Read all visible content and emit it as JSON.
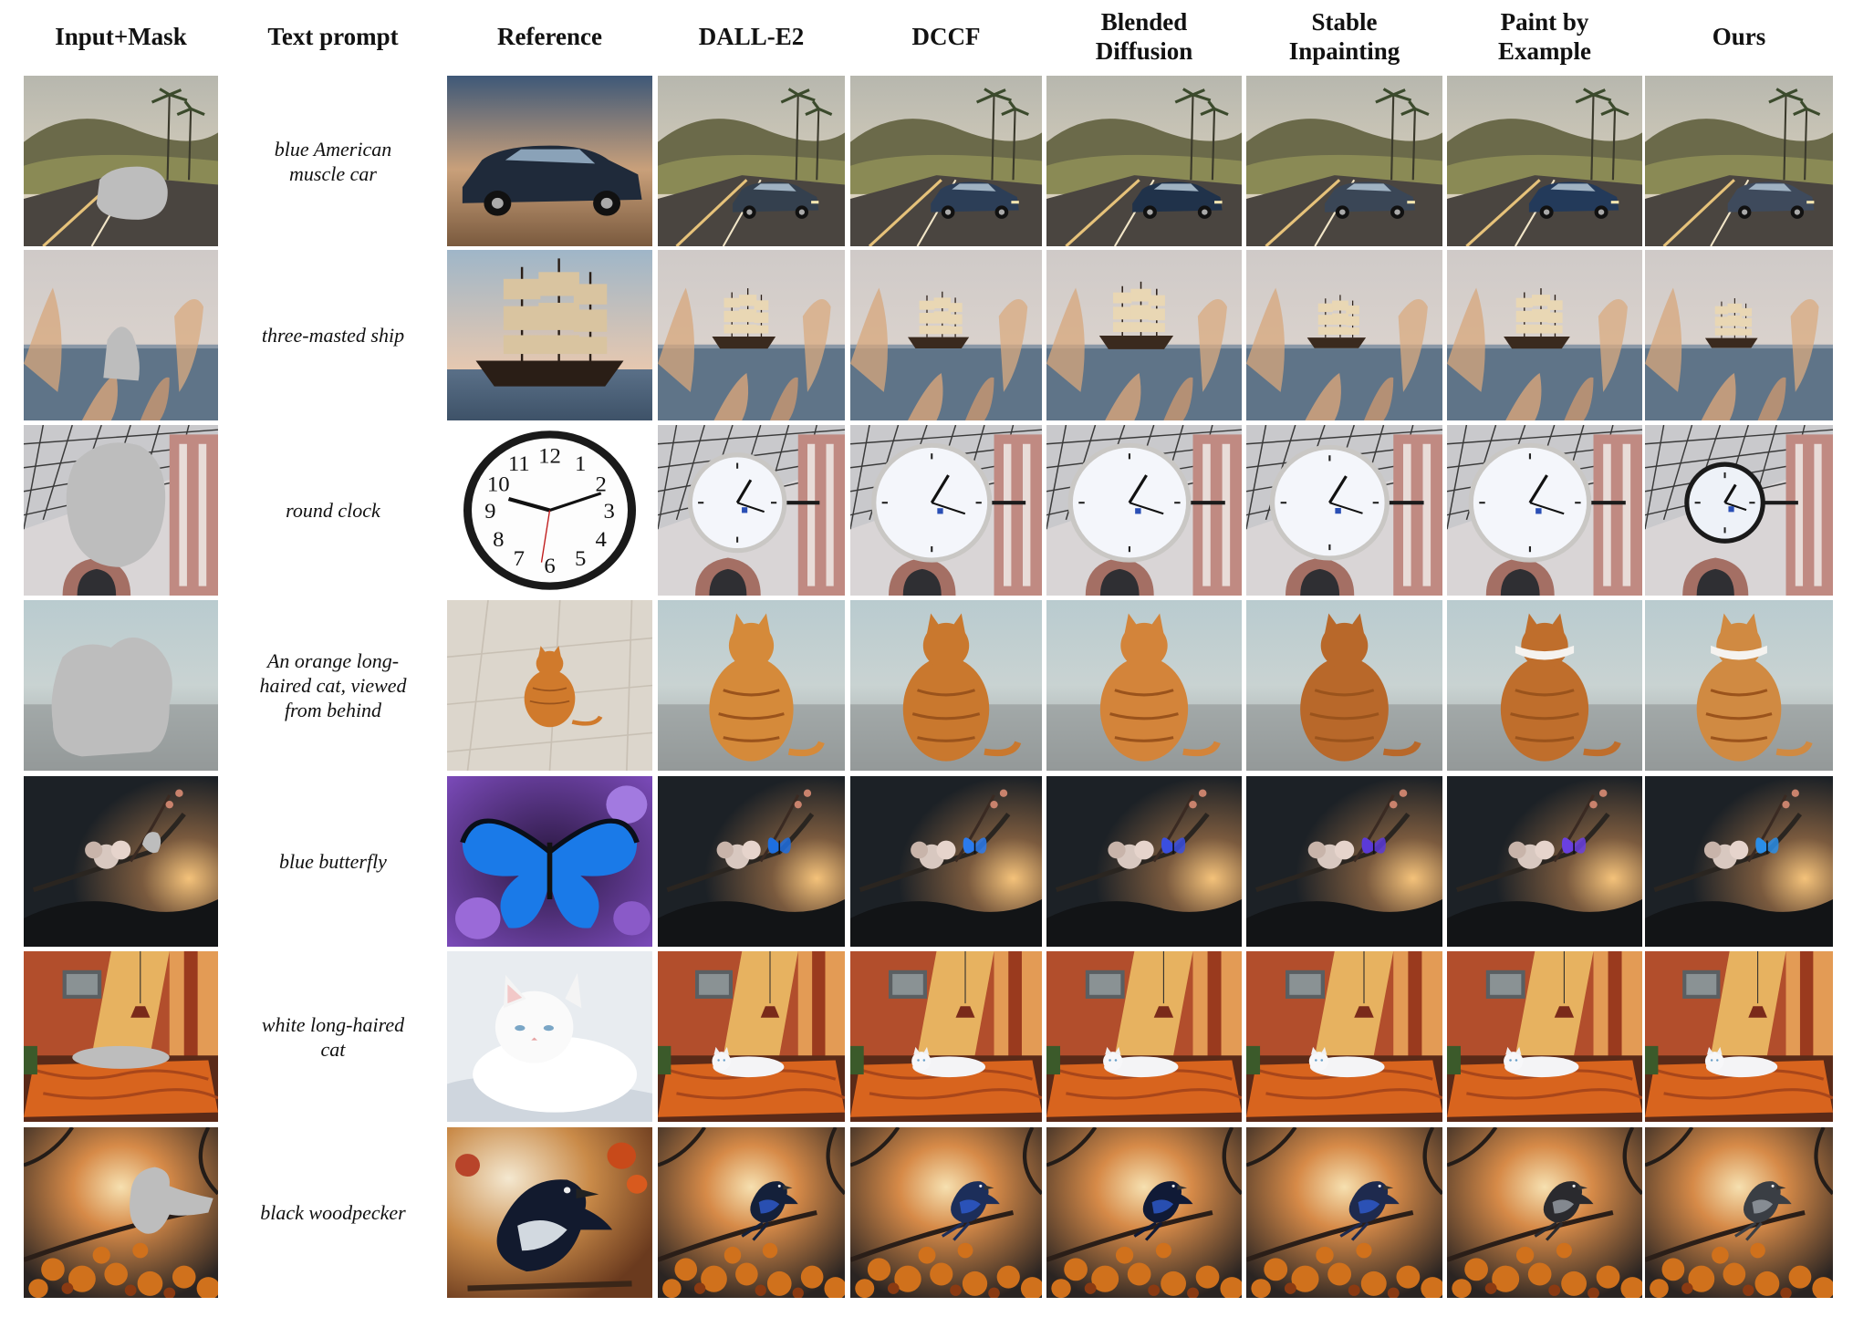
{
  "headers": [
    "Input+Mask",
    "Text prompt",
    "Reference",
    "DALL-E2",
    "DCCF",
    "Blended\nDiffusion",
    "Stable\nInpainting",
    "Paint by\nExample",
    "Ours"
  ],
  "rows": [
    {
      "prompt": "blue American\nmuscle car",
      "scene": "road",
      "subject": "car",
      "ref": "car"
    },
    {
      "prompt": "three-masted ship",
      "scene": "sea",
      "subject": "ship",
      "ref": "ship"
    },
    {
      "prompt": "round clock",
      "scene": "station",
      "subject": "clock",
      "ref": "clock"
    },
    {
      "prompt": "An orange long-\nhaired cat, viewed\nfrom behind",
      "scene": "ground",
      "subject": "cat",
      "ref": "cat"
    },
    {
      "prompt": "blue butterfly",
      "scene": "dusk",
      "subject": "butterfly",
      "ref": "butterfly"
    },
    {
      "prompt": "white long-haired\ncat",
      "scene": "bedroom",
      "subject": "whitecat",
      "ref": "whitecat"
    },
    {
      "prompt": "black woodpecker",
      "scene": "sunset",
      "subject": "bird",
      "ref": "bird"
    }
  ],
  "colors": {
    "mask": "#bdbdbd",
    "background": "#ffffff"
  }
}
